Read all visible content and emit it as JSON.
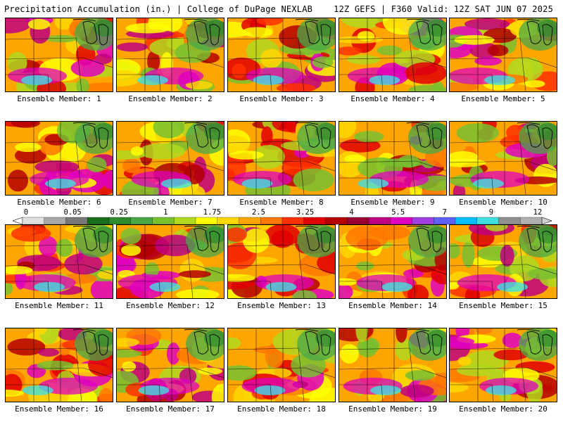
{
  "header": {
    "title_left": "Precipitation Accumulation (in.) | College of DuPage NEXLAB",
    "title_right": "12Z GEFS | F360 Valid: 12Z SAT JUN 07 2025"
  },
  "colorbar": {
    "tick_labels": [
      "0",
      "0.05",
      "0.25",
      "1",
      "1.75",
      "2.5",
      "3.25",
      "4",
      "5.5",
      "7",
      "9",
      "12"
    ],
    "colors": [
      "#e0e0e0",
      "#a8a8a8",
      "#787878",
      "#1a6e1a",
      "#2e8b2e",
      "#48a848",
      "#78c030",
      "#b0d820",
      "#ffff00",
      "#ffd700",
      "#ffa500",
      "#ff7800",
      "#ff3000",
      "#e00000",
      "#b40000",
      "#960030",
      "#c00080",
      "#e000c0",
      "#a040e0",
      "#6060ff",
      "#00c0ff",
      "#40e0e0",
      "#909090",
      "#b0b0b0"
    ]
  },
  "panels": [
    {
      "label": "Ensemble Member: 1"
    },
    {
      "label": "Ensemble Member: 2"
    },
    {
      "label": "Ensemble Member: 3"
    },
    {
      "label": "Ensemble Member: 4"
    },
    {
      "label": "Ensemble Member: 5"
    },
    {
      "label": "Ensemble Member: 6"
    },
    {
      "label": "Ensemble Member: 7"
    },
    {
      "label": "Ensemble Member: 8"
    },
    {
      "label": "Ensemble Member: 9"
    },
    {
      "label": "Ensemble Member: 10"
    },
    {
      "label": "Ensemble Member: 11"
    },
    {
      "label": "Ensemble Member: 12"
    },
    {
      "label": "Ensemble Member: 13"
    },
    {
      "label": "Ensemble Member: 14"
    },
    {
      "label": "Ensemble Member: 15"
    },
    {
      "label": "Ensemble Member: 16"
    },
    {
      "label": "Ensemble Member: 17"
    },
    {
      "label": "Ensemble Member: 18"
    },
    {
      "label": "Ensemble Member: 19"
    },
    {
      "label": "Ensemble Member: 20"
    }
  ]
}
